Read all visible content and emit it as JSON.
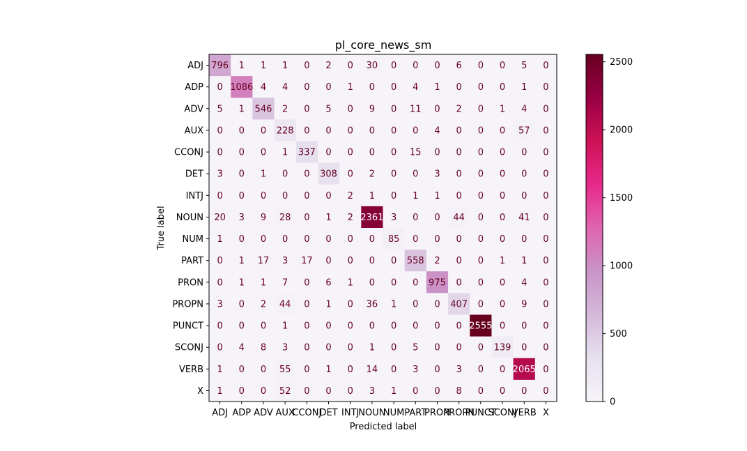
{
  "chart_data": {
    "type": "heatmap",
    "title": "pl_core_news_sm",
    "xlabel": "Predicted label",
    "ylabel": "True label",
    "labels": [
      "ADJ",
      "ADP",
      "ADV",
      "AUX",
      "CCONJ",
      "DET",
      "INTJ",
      "NOUN",
      "NUM",
      "PART",
      "PRON",
      "PROPN",
      "PUNCT",
      "SCONJ",
      "VERB",
      "X"
    ],
    "x_tick_labels": [
      "ADJ",
      "ADP",
      "ADV",
      "AUX",
      "CCONJ",
      "DET",
      "INTJ",
      "NOUN",
      "NUM",
      "PART",
      "PRON",
      "PROPN",
      "PUNCT",
      "SCONJ",
      "VERB",
      "X"
    ],
    "y_tick_labels": [
      "ADJ",
      "ADP",
      "ADV",
      "AUX",
      "CCONJ",
      "DET",
      "INTJ",
      "NOUN",
      "NUM",
      "PART",
      "PRON",
      "PROPN",
      "PUNCT",
      "SCONJ",
      "VERB",
      "X"
    ],
    "matrix": [
      [
        796,
        1,
        1,
        1,
        0,
        2,
        0,
        30,
        0,
        0,
        0,
        6,
        0,
        0,
        5,
        0
      ],
      [
        0,
        1086,
        4,
        4,
        0,
        0,
        1,
        0,
        0,
        4,
        1,
        0,
        0,
        0,
        1,
        0
      ],
      [
        5,
        1,
        546,
        2,
        0,
        5,
        0,
        9,
        0,
        11,
        0,
        2,
        0,
        1,
        4,
        0
      ],
      [
        0,
        0,
        0,
        228,
        0,
        0,
        0,
        0,
        0,
        0,
        4,
        0,
        0,
        0,
        57,
        0
      ],
      [
        0,
        0,
        0,
        1,
        337,
        0,
        0,
        0,
        0,
        15,
        0,
        0,
        0,
        0,
        0,
        0
      ],
      [
        3,
        0,
        1,
        0,
        0,
        308,
        0,
        2,
        0,
        0,
        3,
        0,
        0,
        0,
        0,
        0
      ],
      [
        0,
        0,
        0,
        0,
        0,
        0,
        2,
        1,
        0,
        1,
        1,
        0,
        0,
        0,
        0,
        0
      ],
      [
        20,
        3,
        9,
        28,
        0,
        1,
        2,
        2361,
        3,
        0,
        0,
        44,
        0,
        0,
        41,
        0
      ],
      [
        1,
        0,
        0,
        0,
        0,
        0,
        0,
        0,
        85,
        0,
        0,
        0,
        0,
        0,
        0,
        0
      ],
      [
        0,
        1,
        17,
        3,
        17,
        0,
        0,
        0,
        0,
        558,
        2,
        0,
        0,
        1,
        1,
        0
      ],
      [
        0,
        1,
        1,
        7,
        0,
        6,
        1,
        0,
        0,
        0,
        975,
        0,
        0,
        0,
        4,
        0
      ],
      [
        3,
        0,
        2,
        44,
        0,
        1,
        0,
        36,
        1,
        0,
        0,
        407,
        0,
        0,
        9,
        0
      ],
      [
        0,
        0,
        0,
        1,
        0,
        0,
        0,
        0,
        0,
        0,
        0,
        0,
        2555,
        0,
        0,
        0
      ],
      [
        0,
        4,
        8,
        3,
        0,
        0,
        0,
        1,
        0,
        5,
        0,
        0,
        0,
        139,
        0,
        0
      ],
      [
        1,
        0,
        0,
        55,
        0,
        1,
        0,
        14,
        0,
        3,
        0,
        3,
        0,
        0,
        2065,
        0
      ],
      [
        1,
        0,
        0,
        52,
        0,
        0,
        0,
        3,
        1,
        0,
        0,
        8,
        0,
        0,
        0,
        0
      ]
    ],
    "color_range": [
      0,
      2555
    ],
    "colorbar_ticks": [
      0,
      500,
      1000,
      1500,
      2000,
      2500
    ],
    "colormap": "PuRd",
    "grid": false
  },
  "colors": {
    "dark_text": "#67001f",
    "light_text": "#ffffff",
    "cmap_stops": [
      "#f7f4f9",
      "#e7e1ef",
      "#d4b9da",
      "#c994c7",
      "#df65b0",
      "#e7298a",
      "#ce1256",
      "#980043",
      "#67001f"
    ]
  }
}
